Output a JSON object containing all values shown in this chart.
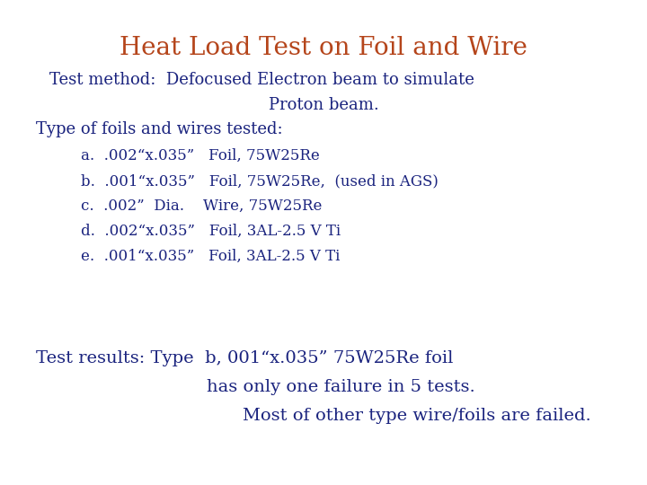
{
  "title": "Heat Load Test on Foil and Wire",
  "title_color": "#b5451b",
  "title_fontsize": 20,
  "body_color": "#1a237e",
  "background_color": "#ffffff",
  "line1": "Test method:  Defocused Electron beam to simulate",
  "line2": "Proton beam.",
  "line3": "Type of foils and wires tested:",
  "items": [
    "a.  .002“x.035”   Foil, 75W25Re",
    "b.  .001“x.035”   Foil, 75W25Re,  (used in AGS)",
    "c.  .002”  Dia.    Wire, 75W25Re",
    "d.  .002“x.035”   Foil, 3AL-2.5 V Ti",
    "e.  .001“x.035”   Foil, 3AL-2.5 V Ti"
  ],
  "result_line1": "Test results: Type  b, 001“x.035” 75W25Re foil",
  "result_line2": "has only one failure in 5 tests.",
  "result_line3": "Most of other type wire/foils are failed.",
  "body_fontsize": 13,
  "item_fontsize": 12,
  "result_fontsize": 14
}
